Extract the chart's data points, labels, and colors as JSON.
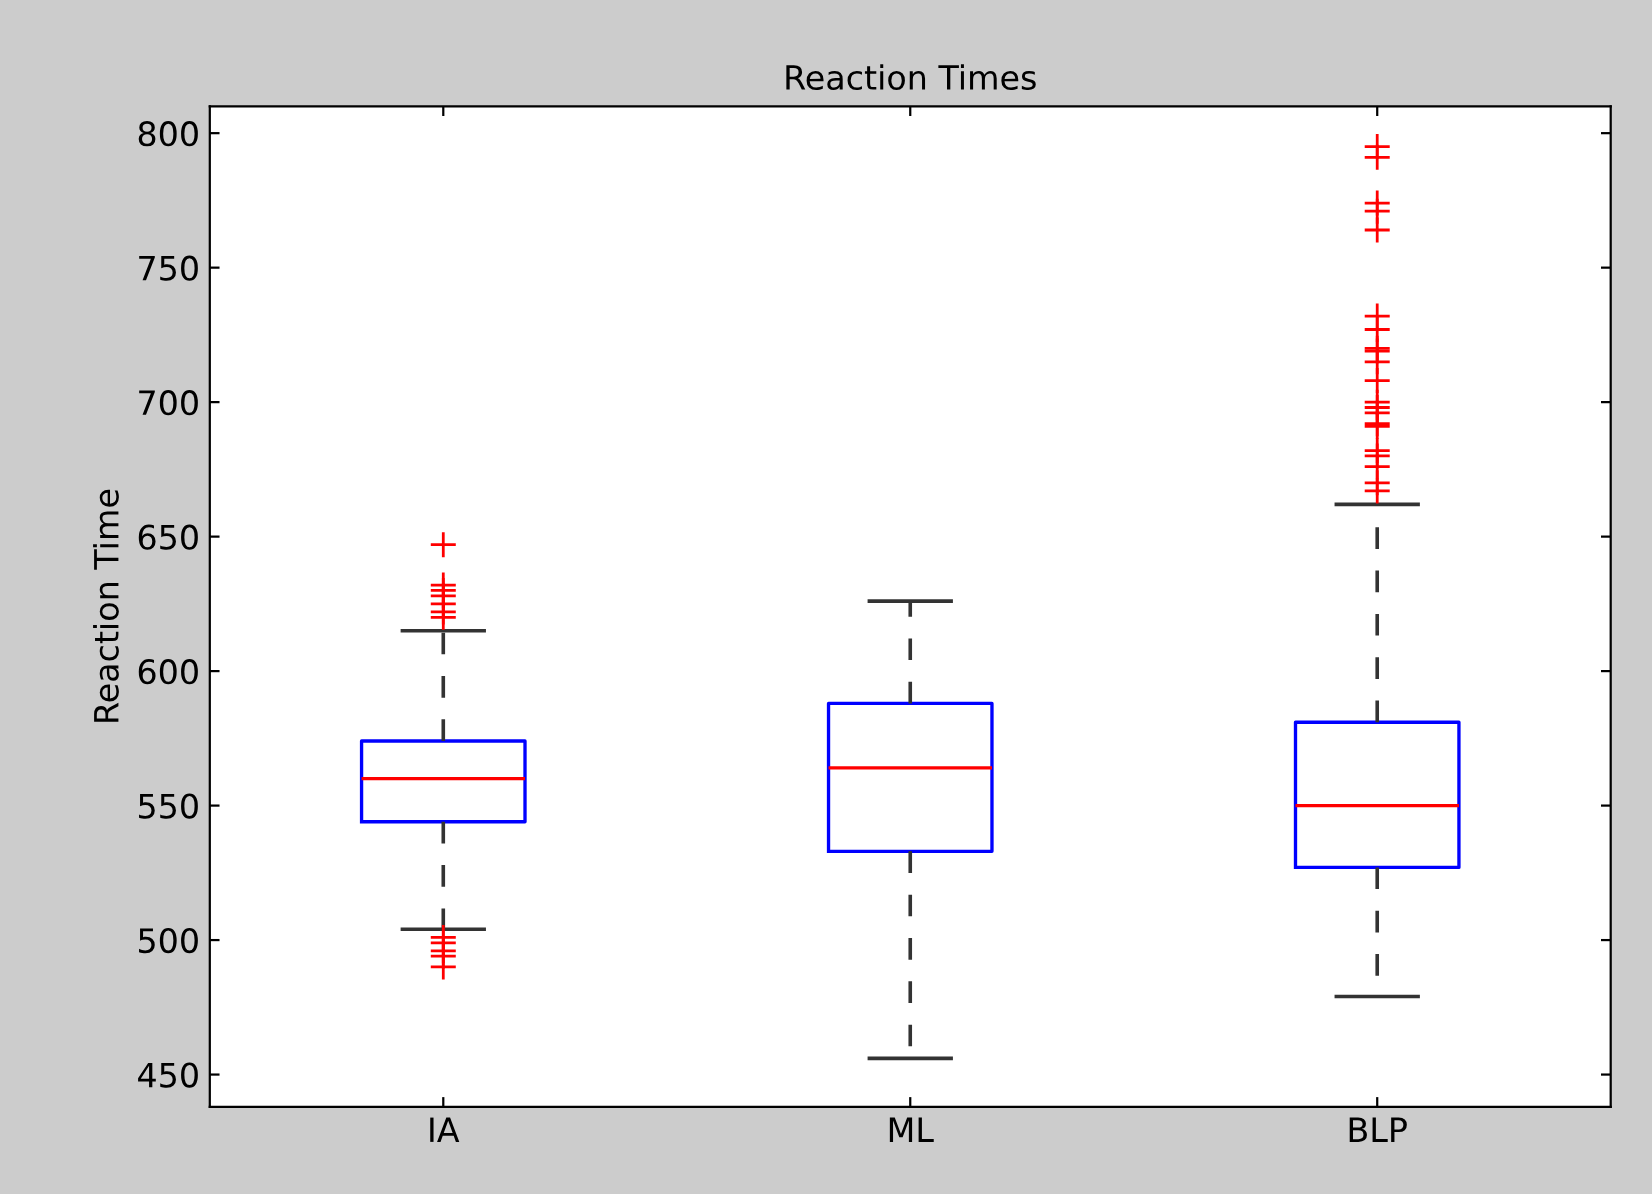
{
  "chart_data": {
    "type": "box",
    "title": "Reaction Times",
    "ylabel": "Reaction Time",
    "categories": [
      "IA",
      "ML",
      "BLP"
    ],
    "boxes": [
      {
        "low": 504,
        "q1": 544,
        "median": 560,
        "q3": 574,
        "high": 615,
        "outliers": [
          647,
          632,
          630,
          628,
          625,
          622,
          620,
          501,
          499,
          496,
          494,
          490
        ]
      },
      {
        "low": 456,
        "q1": 533,
        "median": 564,
        "q3": 588,
        "high": 626
      },
      {
        "low": 479,
        "q1": 527,
        "median": 550,
        "q3": 581,
        "high": 662,
        "outliers": [
          795,
          791,
          774,
          771,
          764,
          732,
          727,
          720,
          719,
          715,
          708,
          700,
          698,
          696,
          692,
          691,
          682,
          680,
          676,
          670,
          667
        ]
      }
    ],
    "color": "#0000ff",
    "ylim": [
      438,
      810
    ],
    "yticks": [
      450,
      500,
      550,
      600,
      650,
      700,
      750,
      800
    ],
    "grid": false,
    "marker": "cross",
    "line_style": "dashed"
  }
}
